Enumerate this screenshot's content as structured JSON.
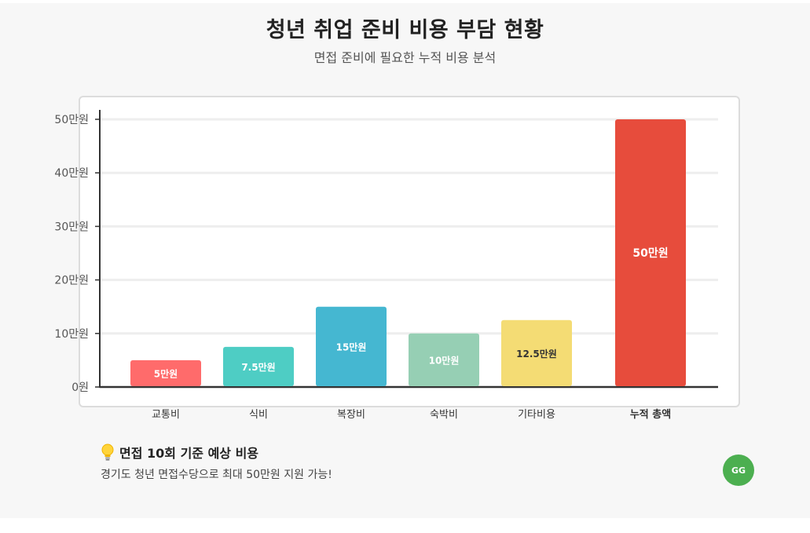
{
  "header": {
    "title": "청년 취업 준비 비용 부담 현황",
    "subtitle": "면접 준비에 필요한 누적 비용 분석"
  },
  "chart_data": {
    "type": "bar",
    "categories": [
      "교통비",
      "식비",
      "복장비",
      "숙박비",
      "기타비용",
      "누적 총액"
    ],
    "values": [
      5,
      7.5,
      15,
      10,
      12.5,
      50
    ],
    "data_labels": [
      "5만원",
      "7.5만원",
      "15만원",
      "10만원",
      "12.5만원",
      "50만원"
    ],
    "y_ticks": [
      0,
      10,
      20,
      30,
      40,
      50
    ],
    "y_tick_labels": [
      "0원",
      "10만원",
      "20만원",
      "30만원",
      "40만원",
      "50만원"
    ],
    "ylim": [
      0,
      50
    ],
    "colors": [
      "#ff6b6b",
      "#4ecdc4",
      "#45b7d1",
      "#96cfb4",
      "#f4dc74",
      "#e74c3c"
    ],
    "label_colors": [
      "#ffffff",
      "#ffffff",
      "#ffffff",
      "#ffffff",
      "#333333",
      "#ffffff"
    ],
    "grid": true,
    "emphasized_category": "누적 총액"
  },
  "note": {
    "icon": "lightbulb-icon",
    "title": "면접 10회 기준 예상 비용",
    "text": "경기도 청년 면접수당으로 최대 50만원 지원 가능!"
  },
  "badge": {
    "text": "GG",
    "color": "#4caf50"
  }
}
